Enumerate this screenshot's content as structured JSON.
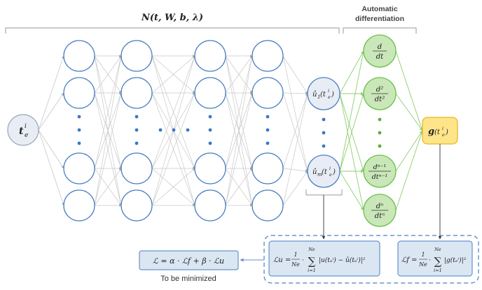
{
  "top_label": "N(t, W, b, λ)",
  "ad_label_line1": "Automatic",
  "ad_label_line2": "differentiation",
  "input_node": "t",
  "input_sub": "e",
  "input_sup": "i",
  "output_top": "û",
  "output_top_sub": "1",
  "output_bot": "û",
  "output_bot_sub": "m",
  "output_arg": "(t",
  "output_arg_sub": "e",
  "output_arg_sup": "i",
  "output_arg_close": ")",
  "deriv_1_num": "d",
  "deriv_1_den": "dt",
  "deriv_2_num": "d²",
  "deriv_2_den": "dt²",
  "deriv_3_num": "dⁿ⁻¹",
  "deriv_3_den": "dtⁿ⁻¹",
  "deriv_4_num": "dⁿ",
  "deriv_4_den": "dtⁿ",
  "g_node": "g",
  "g_arg": "(t",
  "g_arg_sub": "e",
  "g_arg_sup": "i",
  "g_arg_close": ")",
  "loss_total": "ℒ = α · ℒf + β · ℒu",
  "loss_total_caption": "To be minimized",
  "loss_u_lhs": "ℒu =",
  "loss_u_frac_num": "1",
  "loss_u_frac_den": "Ne",
  "loss_u_sum_top": "Ne",
  "loss_u_sum_bot": "i=1",
  "loss_u_term": "|u(tₑⁱ) − û(tₑⁱ)|²",
  "loss_f_lhs": "ℒf =",
  "loss_f_frac_num": "1",
  "loss_f_frac_den": "Ne",
  "loss_f_sum_top": "Ne",
  "loss_f_sum_bot": "i=1",
  "loss_f_term": "|g(tₑⁱ)|²",
  "colors": {
    "hidden_stroke": "#4a7fc1",
    "node_fill_light": "#e8edf5",
    "green_fill": "#c9e7b8",
    "green_stroke": "#6bbf4a",
    "yellow_fill": "#ffe58a",
    "yellow_stroke": "#e8b820",
    "box_fill": "#dbe6f3",
    "dash": "#4a7fc1",
    "edge": "#c8c8c8",
    "green_edge": "#8ccf6e"
  }
}
